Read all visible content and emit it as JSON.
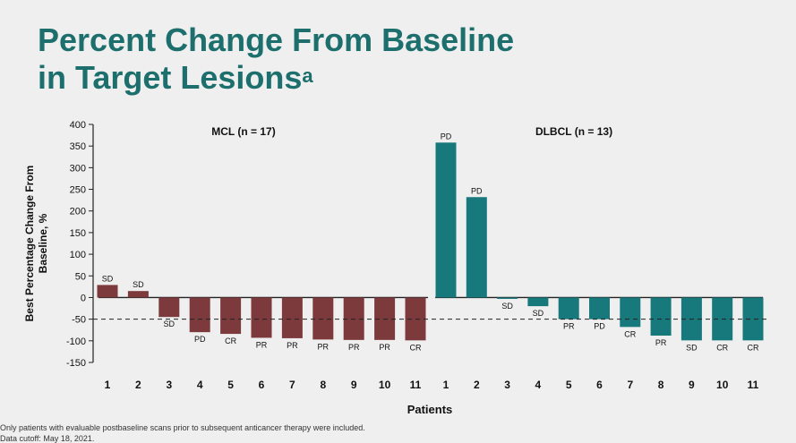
{
  "title": {
    "line1": "Percent Change From Baseline",
    "line2": "in Target Lesions",
    "superscript": "a"
  },
  "chart_data": {
    "type": "bar",
    "ylabel_line1": "Best Percentage Change From",
    "ylabel_line2": "Baseline, %",
    "xlabel": "Patients",
    "ylim": [
      -150,
      400
    ],
    "yticks": [
      400,
      350,
      300,
      250,
      200,
      150,
      100,
      50,
      0,
      -50,
      -100,
      -150
    ],
    "reference_line": -50,
    "panels": [
      {
        "label": "MCL (n = 17)",
        "color": "#7d3a3c",
        "categories": [
          "1",
          "2",
          "3",
          "4",
          "5",
          "6",
          "7",
          "8",
          "9",
          "10",
          "11"
        ],
        "values": [
          29,
          15,
          -45,
          -80,
          -84,
          -93,
          -94,
          -97,
          -98,
          -98,
          -99
        ],
        "responses": [
          "SD",
          "SD",
          "SD",
          "PD",
          "CR",
          "PR",
          "PR",
          "PR",
          "PR",
          "PR",
          "CR"
        ]
      },
      {
        "label": "DLBCL (n = 13)",
        "color": "#17797b",
        "categories": [
          "1",
          "2",
          "3",
          "4",
          "5",
          "6",
          "7",
          "8",
          "9",
          "10",
          "11"
        ],
        "values": [
          358,
          232,
          -3,
          -20,
          -50,
          -50,
          -68,
          -88,
          -99,
          -99,
          -99
        ],
        "responses": [
          "PD",
          "PD",
          "SD",
          "SD",
          "PR",
          "PD",
          "CR",
          "PR",
          "SD",
          "CR",
          "CR"
        ]
      }
    ]
  },
  "footnotes": {
    "line1": "Only patients with evaluable postbaseline scans prior to subsequent anticancer therapy were included.",
    "line2": "Data cutoff: May 18, 2021."
  }
}
